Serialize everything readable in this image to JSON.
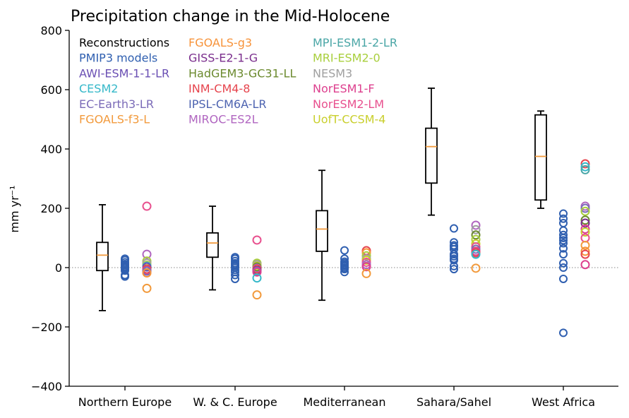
{
  "chart_data": {
    "type": "box-and-scatter",
    "title": "Precipitation change in the Mid-Holocene",
    "ylabel": "mm yr⁻¹",
    "xlabel": "",
    "ylim": [
      -400,
      800
    ],
    "yticks": [
      -400,
      -200,
      0,
      200,
      400,
      600,
      800
    ],
    "ytick_labels": [
      "−400",
      "−200",
      "0",
      "200",
      "400",
      "600",
      "800"
    ],
    "zero_line": true,
    "categories": [
      "Northern Europe",
      "W. & C. Europe",
      "Mediterranean",
      "Sahara/Sahel",
      "West Africa"
    ],
    "legend_location": "upper-left",
    "legend": [
      {
        "name": "Reconstructions",
        "color": "#000000"
      },
      {
        "name": "PMIP3 models",
        "color": "#2f5fb0"
      },
      {
        "name": "AWI-ESM-1-1-LR",
        "color": "#6a4fb3"
      },
      {
        "name": "CESM2",
        "color": "#35b8c9"
      },
      {
        "name": "EC-Earth3-LR",
        "color": "#7b6bb8"
      },
      {
        "name": "FGOALS-f3-L",
        "color": "#f29a3c"
      },
      {
        "name": "FGOALS-g3",
        "color": "#f7933a"
      },
      {
        "name": "GISS-E2-1-G",
        "color": "#7a2d8c"
      },
      {
        "name": "HadGEM3-GC31-LL",
        "color": "#6b8a2e"
      },
      {
        "name": "INM-CM4-8",
        "color": "#e6454e"
      },
      {
        "name": "IPSL-CM6A-LR",
        "color": "#4d63b0"
      },
      {
        "name": "MIROC-ES2L",
        "color": "#b065c0"
      },
      {
        "name": "MPI-ESM1-2-LR",
        "color": "#4aa6a6"
      },
      {
        "name": "MRI-ESM2-0",
        "color": "#a9cf3d"
      },
      {
        "name": "NESM3",
        "color": "#a0a0a0"
      },
      {
        "name": "NorESM1-F",
        "color": "#dd3f8e"
      },
      {
        "name": "NorESM2-LM",
        "color": "#e8508e"
      },
      {
        "name": "UofT-CCSM-4",
        "color": "#c9cf2d"
      }
    ],
    "reconstructions_boxes": [
      {
        "region": "Northern Europe",
        "whisker_low": -145,
        "q1": -10,
        "median": 42,
        "q3": 85,
        "whisker_high": 212,
        "median_color": "#f29a3c"
      },
      {
        "region": "W. & C. Europe",
        "whisker_low": -75,
        "q1": 35,
        "median": 83,
        "q3": 117,
        "whisker_high": 207,
        "median_color": "#f29a3c"
      },
      {
        "region": "Mediterranean",
        "whisker_low": -110,
        "q1": 55,
        "median": 130,
        "q3": 192,
        "whisker_high": 328,
        "median_color": "#f29a3c"
      },
      {
        "region": "Sahara/Sahel",
        "whisker_low": 177,
        "q1": 285,
        "median": 408,
        "q3": 470,
        "whisker_high": 605,
        "median_color": "#f29a3c"
      },
      {
        "region": "West Africa",
        "whisker_low": 200,
        "q1": 228,
        "median": 375,
        "q3": 515,
        "whisker_high": 528,
        "median_color": "#f29a3c"
      }
    ],
    "pmip3_models": {
      "color": "#2f5fb0",
      "values": [
        [
          30,
          25,
          18,
          12,
          8,
          3,
          0,
          -5,
          -10,
          -25,
          -30
        ],
        [
          35,
          30,
          22,
          15,
          10,
          5,
          0,
          -8,
          -15,
          -25,
          -38
        ],
        [
          58,
          30,
          20,
          15,
          10,
          5,
          0,
          -5,
          -15
        ],
        [
          132,
          85,
          75,
          70,
          62,
          45,
          38,
          30,
          25,
          5,
          -5
        ],
        [
          182,
          165,
          150,
          125,
          110,
          100,
          92,
          82,
          65,
          45,
          15,
          0,
          -38,
          -220
        ]
      ]
    },
    "pmip4_models": {
      "values": [
        [
          {
            "color": "#e8508e",
            "v": 207
          },
          {
            "color": "#b065c0",
            "v": 45
          },
          {
            "color": "#a9cf3d",
            "v": 22
          },
          {
            "color": "#a0a0a0",
            "v": 15
          },
          {
            "color": "#c9cf2d",
            "v": 8
          },
          {
            "color": "#35b8c9",
            "v": 5
          },
          {
            "color": "#6a4fb3",
            "v": 2
          },
          {
            "color": "#e6454e",
            "v": -5
          },
          {
            "color": "#dd3f8e",
            "v": -10
          },
          {
            "color": "#7b6bb8",
            "v": -12
          },
          {
            "color": "#f7933a",
            "v": -18
          },
          {
            "color": "#f29a3c",
            "v": -70
          }
        ],
        [
          {
            "color": "#e8508e",
            "v": 93
          },
          {
            "color": "#a9cf3d",
            "v": 15
          },
          {
            "color": "#a0a0a0",
            "v": 10
          },
          {
            "color": "#c9cf2d",
            "v": 5
          },
          {
            "color": "#6b8a2e",
            "v": 2
          },
          {
            "color": "#b065c0",
            "v": -2
          },
          {
            "color": "#e6454e",
            "v": -5
          },
          {
            "color": "#7a2d8c",
            "v": -10
          },
          {
            "color": "#7b6bb8",
            "v": -12
          },
          {
            "color": "#dd3f8e",
            "v": -15
          },
          {
            "color": "#35b8c9",
            "v": -35
          },
          {
            "color": "#f29a3c",
            "v": -92
          }
        ],
        [
          {
            "color": "#e6454e",
            "v": 57
          },
          {
            "color": "#f7933a",
            "v": 50
          },
          {
            "color": "#a9cf3d",
            "v": 40
          },
          {
            "color": "#a0a0a0",
            "v": 30
          },
          {
            "color": "#c9cf2d",
            "v": 25
          },
          {
            "color": "#e8508e",
            "v": 18
          },
          {
            "color": "#b065c0",
            "v": 10
          },
          {
            "color": "#dd3f8e",
            "v": 3
          },
          {
            "color": "#f29a3c",
            "v": -20
          }
        ],
        [
          {
            "color": "#b065c0",
            "v": 143
          },
          {
            "color": "#a0a0a0",
            "v": 128
          },
          {
            "color": "#6b8a2e",
            "v": 110
          },
          {
            "color": "#a9cf3d",
            "v": 95
          },
          {
            "color": "#c9cf2d",
            "v": 80
          },
          {
            "color": "#e8508e",
            "v": 70
          },
          {
            "color": "#7b6bb8",
            "v": 62
          },
          {
            "color": "#dd3f8e",
            "v": 55
          },
          {
            "color": "#e6454e",
            "v": 50
          },
          {
            "color": "#35b8c9",
            "v": 45
          },
          {
            "color": "#f29a3c",
            "v": -2
          }
        ],
        [
          {
            "color": "#e6454e",
            "v": 350
          },
          {
            "color": "#35b8c9",
            "v": 340
          },
          {
            "color": "#4aa6a6",
            "v": 330
          },
          {
            "color": "#b065c0",
            "v": 207
          },
          {
            "color": "#7b6bb8",
            "v": 200
          },
          {
            "color": "#a9cf3d",
            "v": 190
          },
          {
            "color": "#6b8a2e",
            "v": 160
          },
          {
            "color": "#7a2d8c",
            "v": 150
          },
          {
            "color": "#dd3f8e",
            "v": 130
          },
          {
            "color": "#c9cf2d",
            "v": 120
          },
          {
            "color": "#e8508e",
            "v": 100
          },
          {
            "color": "#f29a3c",
            "v": 75
          },
          {
            "color": "#f7933a",
            "v": 55
          },
          {
            "color": "#e6454e",
            "v": 45
          },
          {
            "color": "#dd3f8e",
            "v": 10
          }
        ]
      ]
    }
  }
}
